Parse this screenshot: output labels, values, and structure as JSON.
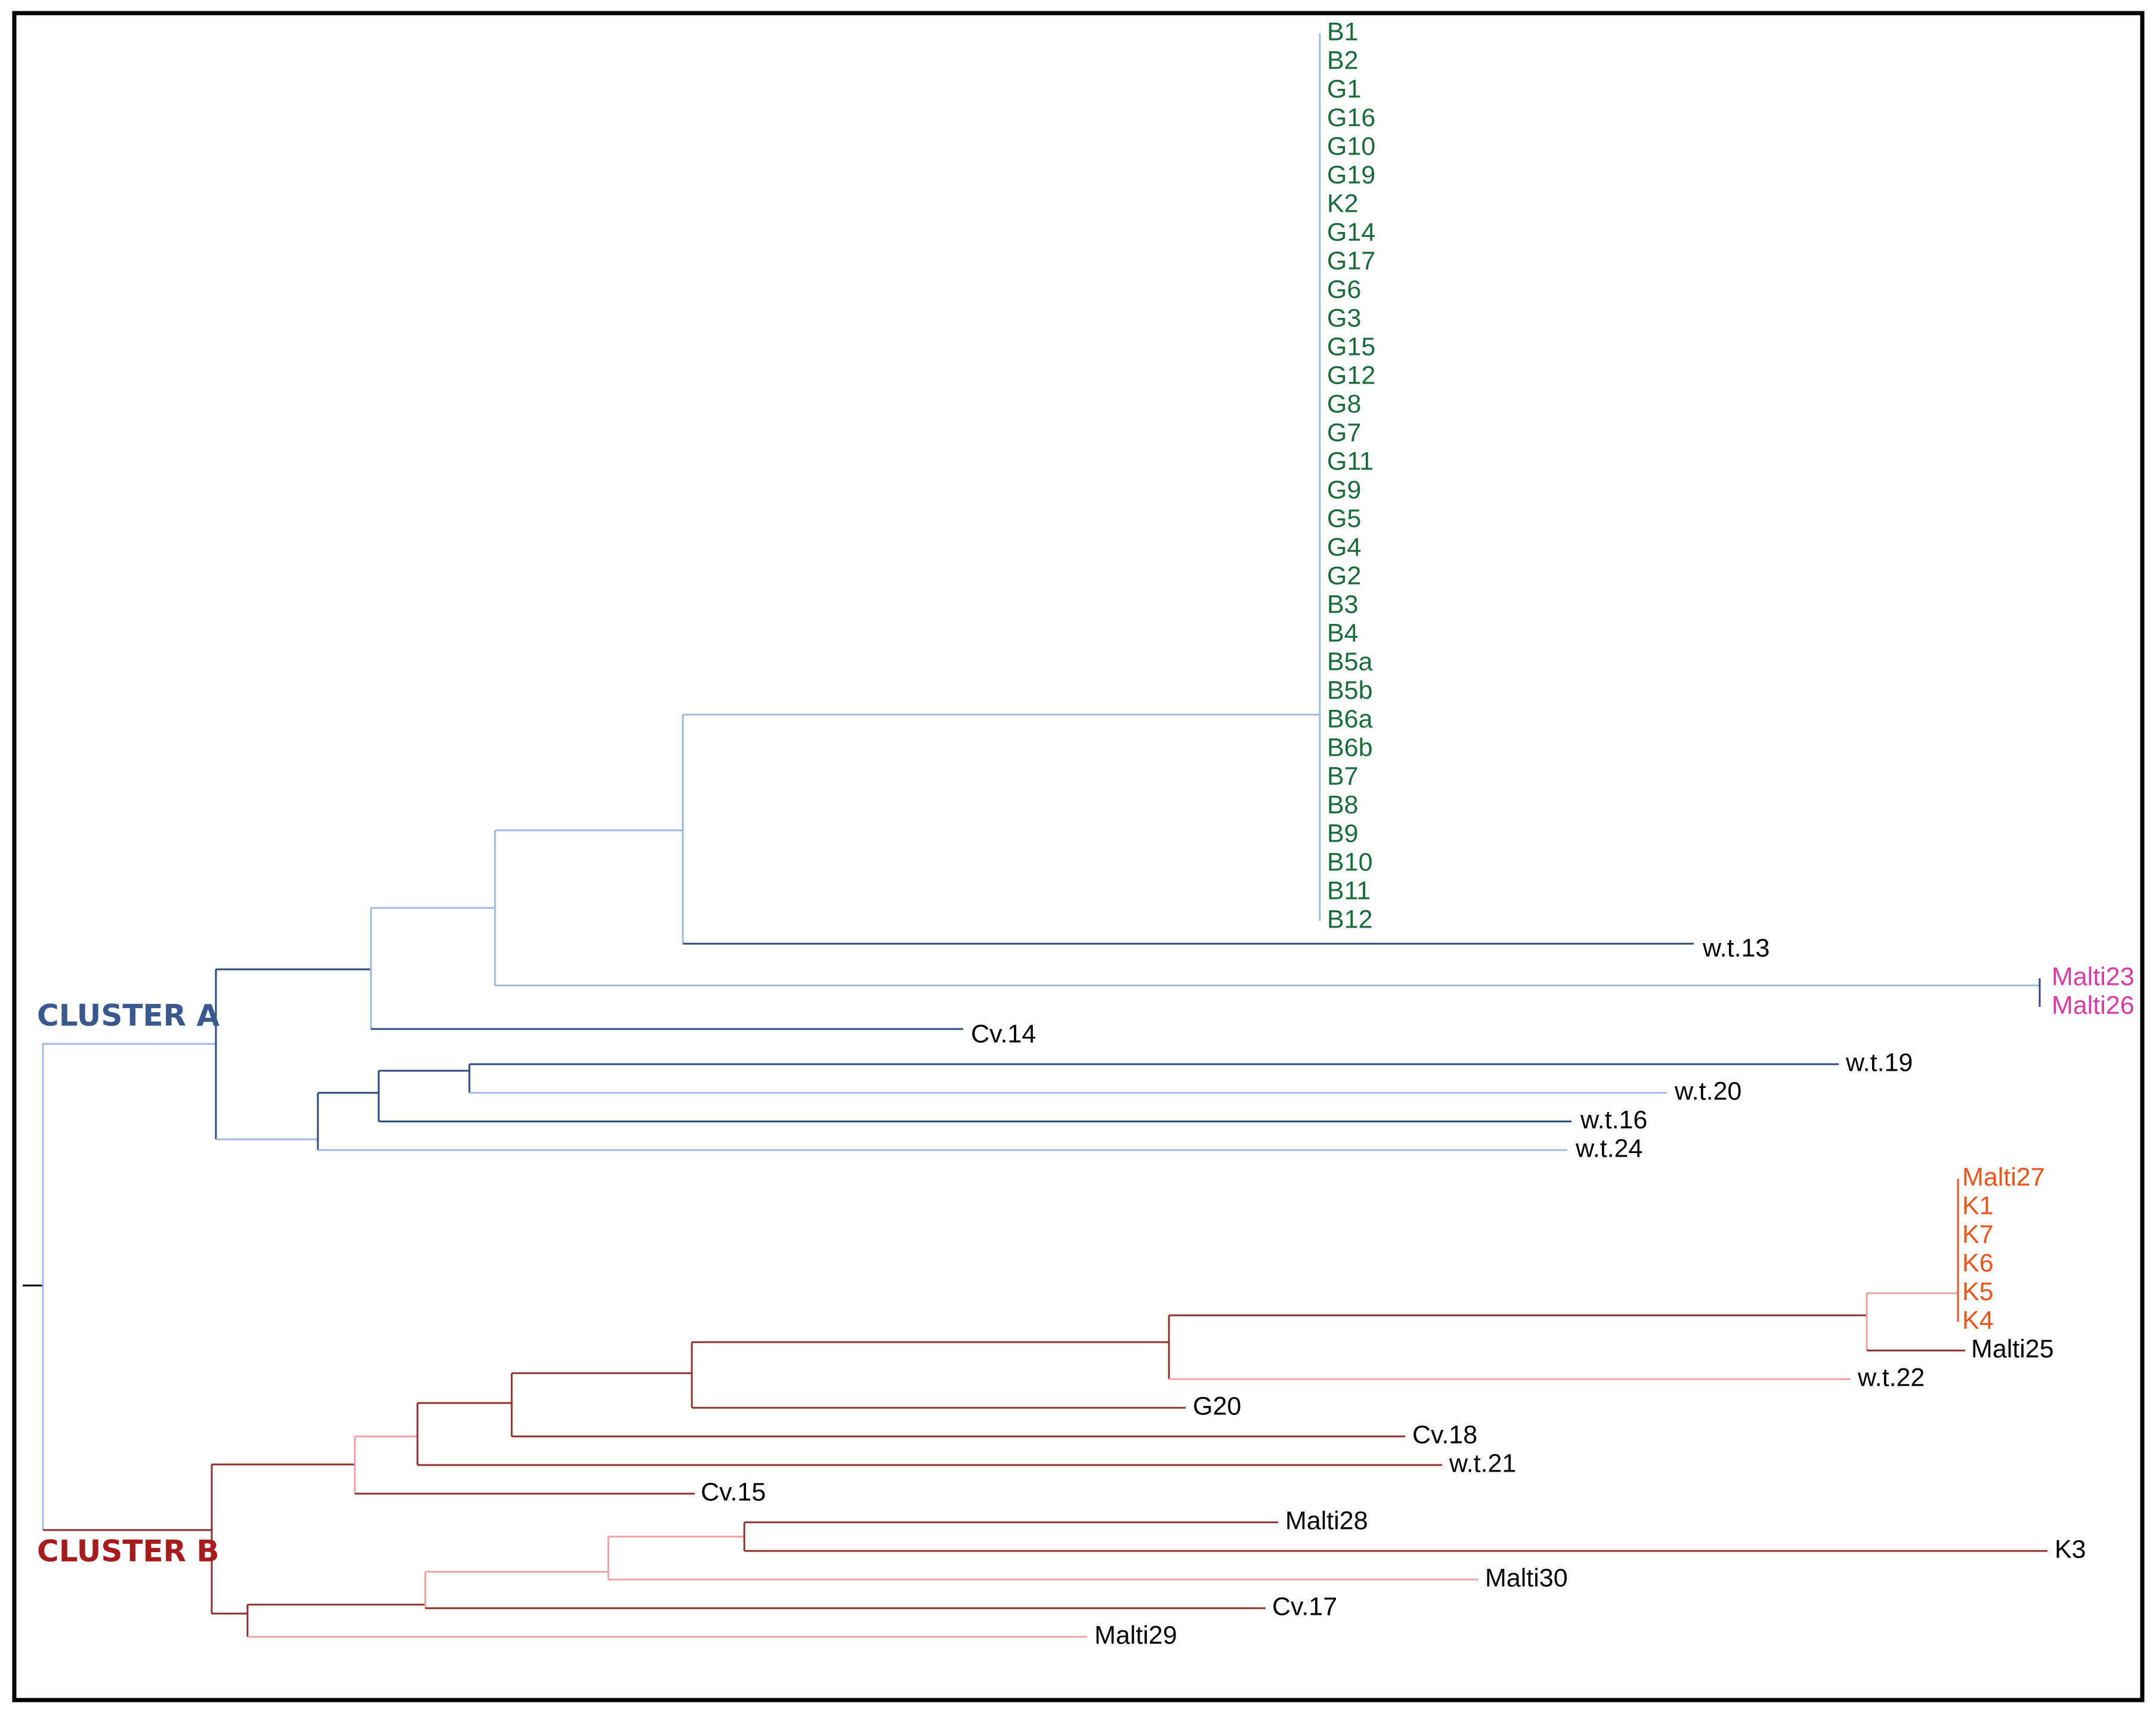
{
  "diagram": {
    "title": "",
    "colors": {
      "frame": "#000000",
      "root": "#000000",
      "dark_blue": "#2e4a7d",
      "light_blue": "#9fb7dc",
      "dark_red": "#8b2f2f",
      "light_red": "#eba0a0",
      "green": "#1a6b3c",
      "magenta": "#d63aa5",
      "orange": "#e8561e",
      "black": "#000000",
      "cluster_a": "#3a5a8f",
      "cluster_b": "#a61c1c"
    },
    "clusters": [
      {
        "id": "A",
        "label": "CLUSTER A",
        "color_key": "cluster_a"
      },
      {
        "id": "B",
        "label": "CLUSTER B",
        "color_key": "cluster_b"
      }
    ],
    "leaves": [
      {
        "label": "B1",
        "color_key": "green"
      },
      {
        "label": "B2",
        "color_key": "green"
      },
      {
        "label": "G1",
        "color_key": "green"
      },
      {
        "label": "G16",
        "color_key": "green"
      },
      {
        "label": "G10",
        "color_key": "green"
      },
      {
        "label": "G19",
        "color_key": "green"
      },
      {
        "label": "K2",
        "color_key": "green"
      },
      {
        "label": "G14",
        "color_key": "green"
      },
      {
        "label": "G17",
        "color_key": "green"
      },
      {
        "label": "G6",
        "color_key": "green"
      },
      {
        "label": "G3",
        "color_key": "green"
      },
      {
        "label": "G15",
        "color_key": "green"
      },
      {
        "label": "G12",
        "color_key": "green"
      },
      {
        "label": "G8",
        "color_key": "green"
      },
      {
        "label": "G7",
        "color_key": "green"
      },
      {
        "label": "G11",
        "color_key": "green"
      },
      {
        "label": "G9",
        "color_key": "green"
      },
      {
        "label": "G5",
        "color_key": "green"
      },
      {
        "label": "G4",
        "color_key": "green"
      },
      {
        "label": "G2",
        "color_key": "green"
      },
      {
        "label": "B3",
        "color_key": "green"
      },
      {
        "label": "B4",
        "color_key": "green"
      },
      {
        "label": "B5a",
        "color_key": "green"
      },
      {
        "label": "B5b",
        "color_key": "green"
      },
      {
        "label": "B6a",
        "color_key": "green"
      },
      {
        "label": "B6b",
        "color_key": "green"
      },
      {
        "label": "B7",
        "color_key": "green"
      },
      {
        "label": "B8",
        "color_key": "green"
      },
      {
        "label": "B9",
        "color_key": "green"
      },
      {
        "label": "B10",
        "color_key": "green"
      },
      {
        "label": "B11",
        "color_key": "green"
      },
      {
        "label": "B12",
        "color_key": "green"
      },
      {
        "label": "w.t.13",
        "color_key": "black"
      },
      {
        "label": "Malti23",
        "color_key": "magenta"
      },
      {
        "label": "Malti26",
        "color_key": "magenta"
      },
      {
        "label": "Cv.14",
        "color_key": "black"
      },
      {
        "label": "w.t.19",
        "color_key": "black"
      },
      {
        "label": "w.t.20",
        "color_key": "black"
      },
      {
        "label": "w.t.16",
        "color_key": "black"
      },
      {
        "label": "w.t.24",
        "color_key": "black"
      },
      {
        "label": "Malti27",
        "color_key": "orange"
      },
      {
        "label": "K1",
        "color_key": "orange"
      },
      {
        "label": "K7",
        "color_key": "orange"
      },
      {
        "label": "K6",
        "color_key": "orange"
      },
      {
        "label": "K5",
        "color_key": "orange"
      },
      {
        "label": "K4",
        "color_key": "orange"
      },
      {
        "label": "Malti25",
        "color_key": "black"
      },
      {
        "label": "w.t.22",
        "color_key": "black"
      },
      {
        "label": "G20",
        "color_key": "black"
      },
      {
        "label": "Cv.18",
        "color_key": "black"
      },
      {
        "label": "w.t.21",
        "color_key": "black"
      },
      {
        "label": "Cv.15",
        "color_key": "black"
      },
      {
        "label": "Malti28",
        "color_key": "black"
      },
      {
        "label": "K3",
        "color_key": "black"
      },
      {
        "label": "Malti30",
        "color_key": "black"
      },
      {
        "label": "Cv.17",
        "color_key": "black"
      },
      {
        "label": "Malti29",
        "color_key": "black"
      }
    ]
  }
}
